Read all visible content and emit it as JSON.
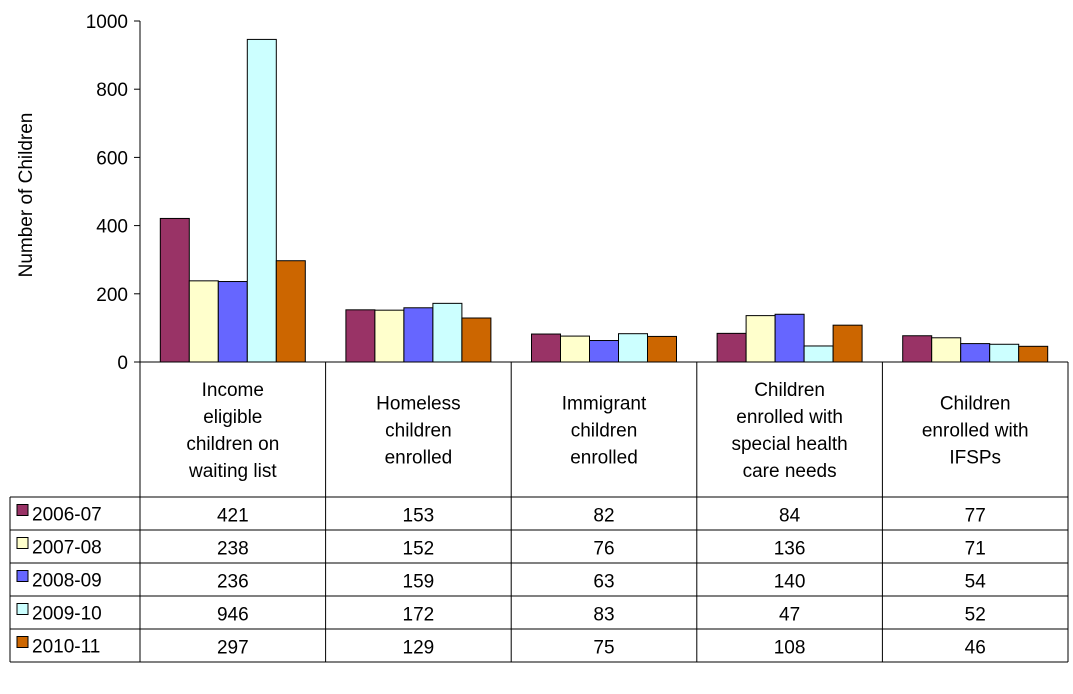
{
  "chart_data": {
    "type": "bar",
    "ylabel": "Number of Children",
    "ylim": [
      0,
      1000
    ],
    "yticks": [
      0,
      200,
      400,
      600,
      800,
      1000
    ],
    "grid": false,
    "legend": "data-table-rows",
    "categories": [
      [
        "Income",
        "eligible",
        "children on",
        "waiting list"
      ],
      [
        "Homeless",
        "children",
        "enrolled"
      ],
      [
        "Immigrant",
        "children",
        "enrolled"
      ],
      [
        "Children",
        "enrolled with",
        "special health",
        "care needs"
      ],
      [
        "Children",
        "enrolled with",
        "IFSPs"
      ]
    ],
    "series": [
      {
        "name": "2006-07",
        "color": "#993366",
        "values": [
          421,
          153,
          82,
          84,
          77
        ]
      },
      {
        "name": "2007-08",
        "color": "#FFFFCC",
        "values": [
          238,
          152,
          76,
          136,
          71
        ]
      },
      {
        "name": "2008-09",
        "color": "#6666FF",
        "values": [
          236,
          159,
          63,
          140,
          54
        ]
      },
      {
        "name": "2009-10",
        "color": "#CCFFFF",
        "values": [
          946,
          172,
          83,
          47,
          52
        ]
      },
      {
        "name": "2010-11",
        "color": "#CC6600",
        "values": [
          297,
          129,
          75,
          108,
          46
        ]
      }
    ]
  }
}
